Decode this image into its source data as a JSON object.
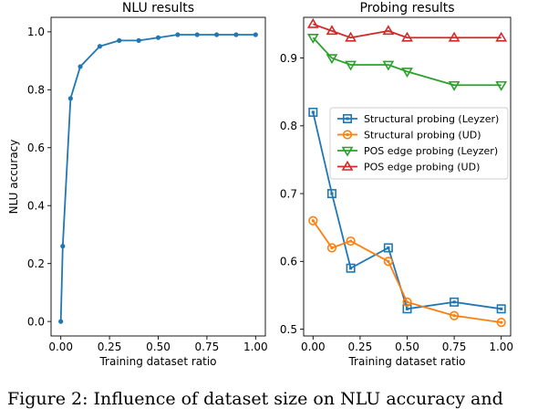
{
  "chart_data": [
    {
      "type": "line",
      "title": "NLU results",
      "xlabel": "Training dataset ratio",
      "ylabel": "NLU accuracy",
      "xlim": [
        -0.05,
        1.05
      ],
      "ylim": [
        -0.05,
        1.05
      ],
      "xticks": [
        0.0,
        0.25,
        0.5,
        0.75,
        1.0
      ],
      "xtick_labels": [
        "0.00",
        "0.25",
        "0.50",
        "0.75",
        "1.00"
      ],
      "yticks": [
        0.0,
        0.2,
        0.4,
        0.6,
        0.8,
        1.0
      ],
      "ytick_labels": [
        "0.0",
        "0.2",
        "0.4",
        "0.6",
        "0.8",
        "1.0"
      ],
      "grid": false,
      "series": [
        {
          "color": "#1f77b4",
          "marker": "circle-small",
          "x": [
            0.0,
            0.01,
            0.05,
            0.1,
            0.2,
            0.3,
            0.4,
            0.5,
            0.6,
            0.7,
            0.8,
            0.9,
            1.0
          ],
          "y": [
            0.0,
            0.26,
            0.77,
            0.88,
            0.95,
            0.97,
            0.97,
            0.98,
            0.99,
            0.99,
            0.99,
            0.99,
            0.99
          ]
        }
      ]
    },
    {
      "type": "line",
      "title": "Probing results",
      "xlabel": "Training dataset ratio",
      "ylabel": "",
      "xlim": [
        -0.05,
        1.05
      ],
      "ylim": [
        0.49,
        0.96
      ],
      "xticks": [
        0.0,
        0.25,
        0.5,
        0.75,
        1.0
      ],
      "xtick_labels": [
        "0.00",
        "0.25",
        "0.50",
        "0.75",
        "1.00"
      ],
      "yticks": [
        0.5,
        0.6,
        0.7,
        0.8,
        0.9
      ],
      "ytick_labels": [
        "0.5",
        "0.6",
        "0.7",
        "0.8",
        "0.9"
      ],
      "grid": false,
      "legend": "center-right",
      "series": [
        {
          "name": "Structural probing (Leyzer)",
          "color": "#1f77b4",
          "marker": "square",
          "x": [
            0.0,
            0.1,
            0.2,
            0.4,
            0.5,
            0.75,
            1.0
          ],
          "y": [
            0.82,
            0.7,
            0.59,
            0.62,
            0.53,
            0.54,
            0.53
          ]
        },
        {
          "name": "Structural probing (UD)",
          "color": "#ff7f0e",
          "marker": "circle",
          "x": [
            0.0,
            0.1,
            0.2,
            0.4,
            0.5,
            0.75,
            1.0
          ],
          "y": [
            0.66,
            0.62,
            0.63,
            0.6,
            0.54,
            0.52,
            0.51
          ]
        },
        {
          "name": "POS edge probing (Leyzer)",
          "color": "#2ca02c",
          "marker": "triangle-down",
          "x": [
            0.0,
            0.1,
            0.2,
            0.4,
            0.5,
            0.75,
            1.0
          ],
          "y": [
            0.93,
            0.9,
            0.89,
            0.89,
            0.88,
            0.86,
            0.86
          ]
        },
        {
          "name": "POS edge probing (UD)",
          "color": "#d62728",
          "marker": "triangle-up",
          "x": [
            0.0,
            0.1,
            0.2,
            0.4,
            0.5,
            0.75,
            1.0
          ],
          "y": [
            0.95,
            0.94,
            0.93,
            0.94,
            0.93,
            0.93,
            0.93
          ]
        }
      ]
    }
  ],
  "caption": "Figure 2: Influence of dataset size on NLU accuracy and"
}
